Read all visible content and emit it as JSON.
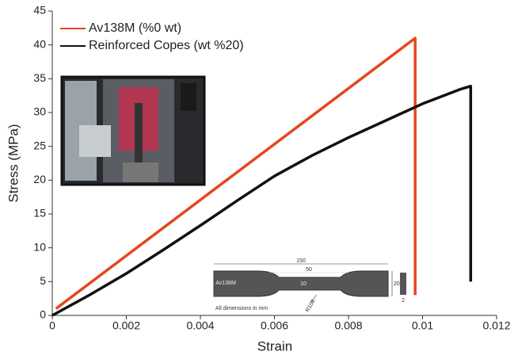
{
  "chart_data": {
    "type": "line",
    "xlabel": "Strain",
    "ylabel": "Stress (MPa)",
    "xlim": [
      0,
      0.012
    ],
    "xticks": [
      0,
      0.002,
      0.004,
      0.006,
      0.008,
      0.01,
      0.012
    ],
    "ylim": [
      0,
      45
    ],
    "yticks": [
      0,
      5,
      10,
      15,
      20,
      25,
      30,
      35,
      40,
      45
    ],
    "grid": false,
    "legend": "upper left",
    "series": [
      {
        "name": "Av138M (%0 wt)",
        "color": "#e5461c",
        "x": [
          0.0001,
          0.0098,
          0.0098
        ],
        "values": [
          1,
          41,
          3
        ]
      },
      {
        "name": "Reinforced Copes (wt %20)",
        "color": "#111111",
        "x": [
          0,
          0.001,
          0.002,
          0.003,
          0.004,
          0.005,
          0.006,
          0.007,
          0.008,
          0.009,
          0.01,
          0.011,
          0.0113,
          0.0113
        ],
        "values": [
          0,
          3,
          6.2,
          9.7,
          13.3,
          17,
          20.6,
          23.6,
          26.3,
          28.8,
          31.3,
          33.4,
          33.9,
          5
        ]
      }
    ],
    "inset_labels": [
      "150",
      "50",
      "Av138M",
      "10",
      "20",
      "R108",
      "All dimensions in mm",
      "2"
    ]
  }
}
